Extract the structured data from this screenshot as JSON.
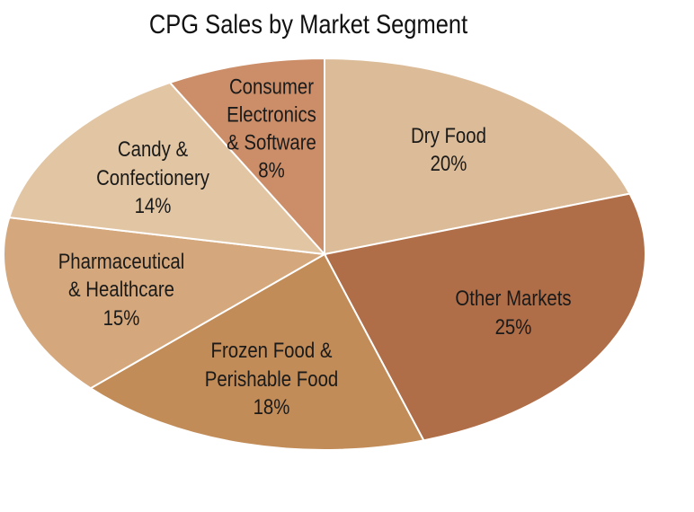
{
  "chart_data": {
    "type": "pie",
    "title": "CPG Sales by Market Segment",
    "categories": [
      "Dry Food",
      "Other Markets",
      "Frozen Food &\nPerishable Food",
      "Pharmaceutical\n& Healthcare",
      "Candy &\nConfectionery",
      "Consumer\nElectronics\n& Software"
    ],
    "values": [
      20,
      25,
      18,
      15,
      14,
      8
    ],
    "value_labels": [
      "20%",
      "25%",
      "18%",
      "15%",
      "14%",
      "8%"
    ],
    "colors": [
      "#dcbc98",
      "#b06e48",
      "#c28c58",
      "#d4a87c",
      "#e2c6a4",
      "#cc8e68"
    ]
  }
}
